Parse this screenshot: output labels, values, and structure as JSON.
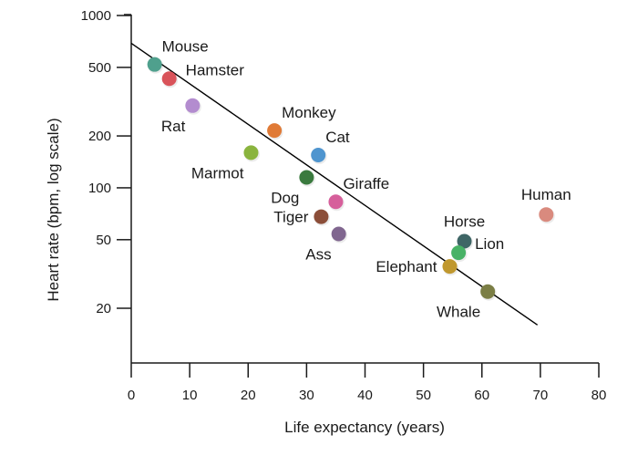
{
  "chart_data": {
    "type": "scatter",
    "title": "",
    "xlabel": "Life expectancy (years)",
    "ylabel": "Heart rate (bpm, log scale)",
    "x_scale": "linear",
    "y_scale": "log",
    "xlim": [
      0,
      80
    ],
    "ylim": [
      10,
      1000
    ],
    "x_ticks": [
      0,
      10,
      20,
      30,
      40,
      50,
      60,
      70,
      80
    ],
    "x_tick_labels": [
      "0",
      "10",
      "20",
      "30",
      "40",
      "50",
      "60",
      "70",
      "80"
    ],
    "y_ticks": [
      20,
      50,
      100,
      200,
      500,
      1000
    ],
    "y_tick_labels": [
      "20",
      "50",
      "100",
      "200",
      "500",
      "1000"
    ],
    "grid": false,
    "legend": "none",
    "points": [
      {
        "label": "Mouse",
        "x": 4,
        "y": 520,
        "color": "#4fa08d",
        "label_pos": "above-right"
      },
      {
        "label": "Hamster",
        "x": 6.5,
        "y": 430,
        "color": "#d9535a",
        "label_pos": "right"
      },
      {
        "label": "Rat",
        "x": 10.5,
        "y": 300,
        "color": "#b38ccf",
        "label_pos": "below-left"
      },
      {
        "label": "Monkey",
        "x": 24.5,
        "y": 215,
        "color": "#e07a36",
        "label_pos": "above-right"
      },
      {
        "label": "Marmot",
        "x": 20.5,
        "y": 160,
        "color": "#8ab43e",
        "label_pos": "below-left"
      },
      {
        "label": "Cat",
        "x": 32,
        "y": 155,
        "color": "#4f95cf",
        "label_pos": "above-right"
      },
      {
        "label": "Dog",
        "x": 30,
        "y": 115,
        "color": "#3a7a3e",
        "label_pos": "below-left"
      },
      {
        "label": "Giraffe",
        "x": 35,
        "y": 83,
        "color": "#d65f9b",
        "label_pos": "above-right"
      },
      {
        "label": "Tiger",
        "x": 32.5,
        "y": 68,
        "color": "#8b4e39",
        "label_pos": "left"
      },
      {
        "label": "Ass",
        "x": 35.5,
        "y": 54,
        "color": "#80668f",
        "label_pos": "below-left"
      },
      {
        "label": "Human",
        "x": 71,
        "y": 70,
        "color": "#d98a7e",
        "label_pos": "above"
      },
      {
        "label": "Horse",
        "x": 57,
        "y": 49,
        "color": "#3f6666",
        "label_pos": "above"
      },
      {
        "label": "Lion",
        "x": 56,
        "y": 42,
        "color": "#48b266",
        "label_pos": "right"
      },
      {
        "label": "Elephant",
        "x": 54.5,
        "y": 35,
        "color": "#c0982f",
        "label_pos": "left"
      },
      {
        "label": "Whale",
        "x": 61,
        "y": 25,
        "color": "#7b7e45",
        "label_pos": "below-left"
      }
    ],
    "trend_line": {
      "x": [
        0,
        69.5
      ],
      "y": [
        690,
        16
      ],
      "color": "#000000"
    }
  }
}
